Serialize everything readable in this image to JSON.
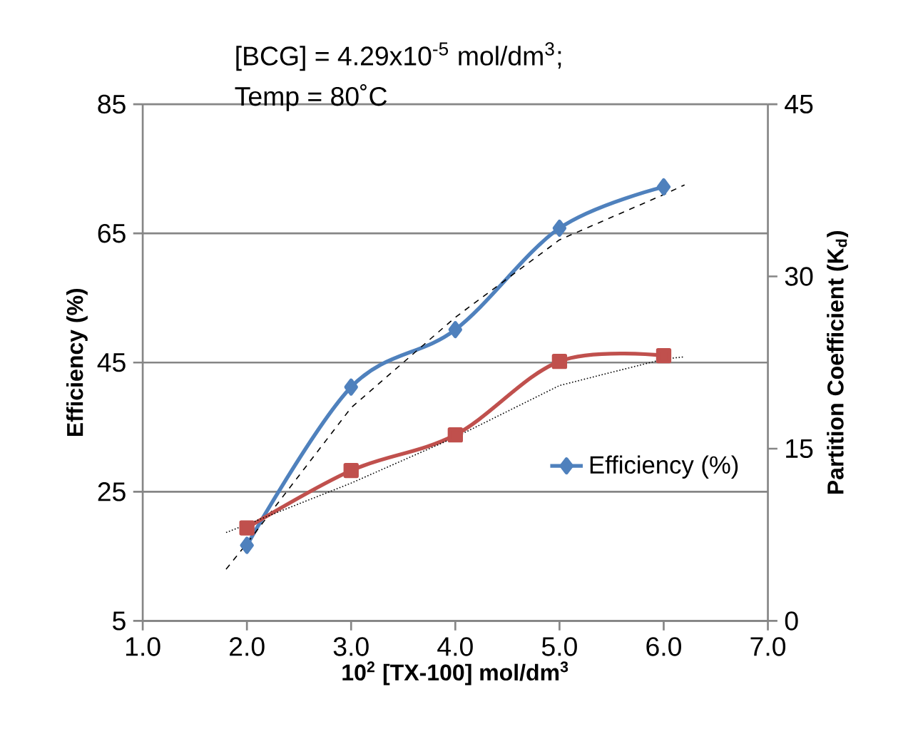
{
  "chart_data": {
    "type": "line",
    "xlabel": "10$^{2}$ [TX-100] mol/dm$^{3}$",
    "ylabel": "Efficiency (%)",
    "y2label": "Partition Coefficient (K$_{d}$)",
    "annotations": [
      "[BCG] = 4.29x10$^{-5}$ mol/dm$^{3}$;",
      "Temp = 80˚C"
    ],
    "x": [
      2,
      3,
      4,
      5,
      6
    ],
    "series": [
      {
        "name": "Efficiency (%)",
        "color": "#4f81bd",
        "values": [
          16.7,
          41.2,
          50.1,
          65.8,
          72.2
        ],
        "marker": "diamond"
      },
      {
        "color": "#c0504d",
        "axis": "y2",
        "values": [
          8.1,
          13.1,
          16.2,
          22.6,
          23.1
        ],
        "marker": "square"
      },
      {
        "type": "line",
        "x": [
          1.8,
          2,
          3,
          4,
          5,
          6,
          6.2
        ],
        "values": [
          13,
          17,
          38,
          52,
          64,
          71,
          72.5
        ],
        "color": "#000000",
        "line_style": "dashed",
        "marker": "none"
      },
      {
        "type": "line",
        "axis": "y2",
        "x": [
          1.8,
          2,
          3,
          4,
          5,
          6,
          6.2
        ],
        "values": [
          7.7,
          8.4,
          12,
          16,
          20.5,
          22.8,
          23
        ],
        "color": "#000000",
        "line_style": "dotted",
        "marker": "none"
      }
    ],
    "xlim": [
      1,
      7
    ],
    "xticks": [
      {
        "value": 1,
        "label": "1.0"
      },
      {
        "value": 2,
        "label": "2.0"
      },
      {
        "value": 3,
        "label": "3.0"
      },
      {
        "value": 4,
        "label": "4.0"
      },
      {
        "value": 5,
        "label": "5.0"
      },
      {
        "value": 6,
        "label": "6.0"
      },
      {
        "value": 7,
        "label": "7.0"
      }
    ],
    "ylim": [
      5,
      85
    ],
    "yticks": [
      5,
      25,
      45,
      65,
      85
    ],
    "y2lim": [
      0,
      45
    ],
    "y2ticks": [
      0,
      15,
      30,
      45
    ],
    "grid": "y",
    "legend": "right"
  }
}
